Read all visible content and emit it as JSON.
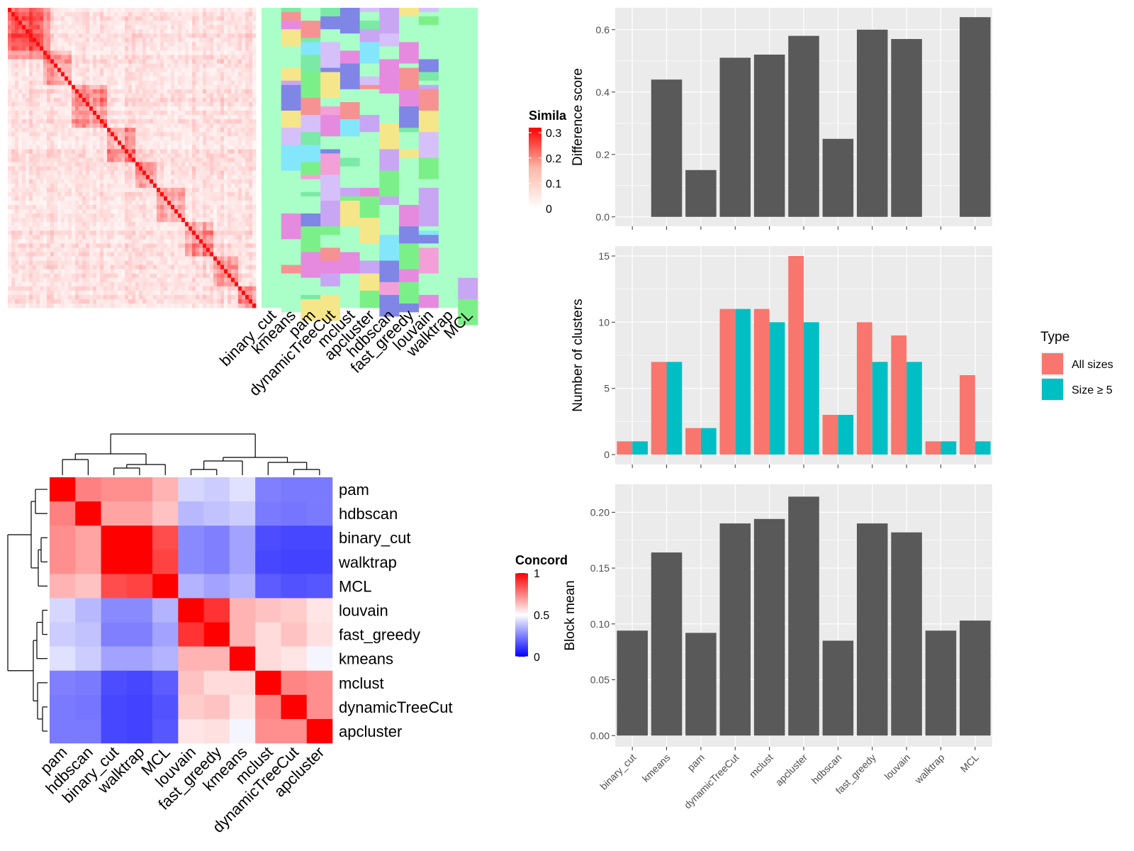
{
  "colors": {
    "panel_bg": "#ebebeb",
    "grid": "#ffffff",
    "bar": "#595959",
    "series_all": "#f8766d",
    "series_size5": "#00bfc4",
    "heat_low": "#0000ff",
    "heat_mid": "#ffffff",
    "heat_high": "#ff0000"
  },
  "chart_data": [
    {
      "id": "similarity_heatmap",
      "type": "heatmap",
      "legend_title": "Simila",
      "legend_ticks": [
        "0.3",
        "0.2",
        "0.1",
        "0"
      ],
      "legend_tick_values": [
        0.3,
        0.2,
        0.1,
        0
      ],
      "column_labels": [
        "binary_cut",
        "kmeans",
        "pam",
        "dynamicTreeCut",
        "mclust",
        "apcluster",
        "hdbscan",
        "fast_greedy",
        "louvain",
        "walktrap",
        "MCL"
      ]
    },
    {
      "id": "concordance_heatmap",
      "type": "heatmap",
      "legend_title": "Concord",
      "legend_ticks": [
        "1",
        "0.5",
        "0"
      ],
      "legend_tick_values": [
        1,
        0.5,
        0
      ],
      "rows": [
        "pam",
        "hdbscan",
        "binary_cut",
        "walktrap",
        "MCL",
        "louvain",
        "fast_greedy",
        "kmeans",
        "mclust",
        "dynamicTreeCut",
        "apcluster"
      ],
      "cols": [
        "pam",
        "hdbscan",
        "binary_cut",
        "walktrap",
        "MCL",
        "louvain",
        "fast_greedy",
        "kmeans",
        "mclust",
        "dynamicTreeCut",
        "apcluster"
      ],
      "values": [
        [
          1.0,
          0.75,
          0.72,
          0.72,
          0.65,
          0.42,
          0.4,
          0.44,
          0.25,
          0.24,
          0.24
        ],
        [
          0.75,
          1.0,
          0.68,
          0.68,
          0.62,
          0.36,
          0.38,
          0.4,
          0.24,
          0.23,
          0.24
        ],
        [
          0.72,
          0.68,
          1.0,
          1.0,
          0.85,
          0.27,
          0.25,
          0.32,
          0.15,
          0.14,
          0.14
        ],
        [
          0.72,
          0.68,
          1.0,
          1.0,
          0.87,
          0.27,
          0.25,
          0.32,
          0.14,
          0.13,
          0.13
        ],
        [
          0.65,
          0.62,
          0.85,
          0.87,
          1.0,
          0.35,
          0.32,
          0.35,
          0.18,
          0.16,
          0.17
        ],
        [
          0.42,
          0.36,
          0.27,
          0.27,
          0.35,
          1.0,
          0.9,
          0.65,
          0.62,
          0.6,
          0.55
        ],
        [
          0.4,
          0.38,
          0.25,
          0.25,
          0.32,
          0.9,
          1.0,
          0.65,
          0.57,
          0.62,
          0.56
        ],
        [
          0.44,
          0.4,
          0.32,
          0.32,
          0.35,
          0.65,
          0.65,
          1.0,
          0.57,
          0.55,
          0.48
        ],
        [
          0.25,
          0.24,
          0.15,
          0.14,
          0.18,
          0.62,
          0.57,
          0.57,
          1.0,
          0.74,
          0.72
        ],
        [
          0.24,
          0.23,
          0.14,
          0.13,
          0.16,
          0.6,
          0.62,
          0.55,
          0.74,
          1.0,
          0.72
        ],
        [
          0.24,
          0.24,
          0.14,
          0.13,
          0.17,
          0.55,
          0.56,
          0.48,
          0.72,
          0.72,
          1.0
        ]
      ]
    },
    {
      "id": "difference_score",
      "type": "bar",
      "categories": [
        "binary_cut",
        "kmeans",
        "pam",
        "dynamicTreeCut",
        "mclust",
        "apcluster",
        "hdbscan",
        "fast_greedy",
        "louvain",
        "walktrap",
        "MCL"
      ],
      "values": [
        0,
        0.44,
        0.15,
        0.51,
        0.52,
        0.58,
        0.25,
        0.6,
        0.57,
        0,
        0.64
      ],
      "ylabel": "Difference score",
      "ylim": [
        -0.03,
        0.67
      ],
      "yticks": [
        0.0,
        0.2,
        0.4,
        0.6
      ],
      "ytick_labels": [
        "0.0",
        "0.2",
        "0.4",
        "0.6"
      ],
      "grid": true
    },
    {
      "id": "number_of_clusters",
      "type": "bar",
      "categories": [
        "binary_cut",
        "kmeans",
        "pam",
        "dynamicTreeCut",
        "mclust",
        "apcluster",
        "hdbscan",
        "fast_greedy",
        "louvain",
        "walktrap",
        "MCL"
      ],
      "series": [
        {
          "name": "All sizes",
          "values": [
            1,
            7,
            2,
            11,
            11,
            15,
            3,
            10,
            9,
            1,
            6
          ]
        },
        {
          "name": "Size ≥ 5",
          "values": [
            1,
            7,
            2,
            11,
            10,
            10,
            3,
            7,
            7,
            1,
            1
          ]
        }
      ],
      "ylabel": "Number of clusters",
      "ylim": [
        -0.75,
        15.75
      ],
      "yticks": [
        0,
        5,
        10,
        15
      ],
      "ytick_labels": [
        "0",
        "5",
        "10",
        "15"
      ],
      "legend_title": "Type",
      "legend_position": "right",
      "grid": true
    },
    {
      "id": "block_mean",
      "type": "bar",
      "categories": [
        "binary_cut",
        "kmeans",
        "pam",
        "dynamicTreeCut",
        "mclust",
        "apcluster",
        "hdbscan",
        "fast_greedy",
        "louvain",
        "walktrap",
        "MCL"
      ],
      "values": [
        0.094,
        0.164,
        0.092,
        0.19,
        0.194,
        0.214,
        0.085,
        0.19,
        0.182,
        0.094,
        0.103
      ],
      "ylabel": "Block mean",
      "ylim": [
        -0.01,
        0.225
      ],
      "yticks": [
        0.0,
        0.05,
        0.1,
        0.15,
        0.2
      ],
      "ytick_labels": [
        "0.00",
        "0.05",
        "0.10",
        "0.15",
        "0.20"
      ],
      "grid": true
    }
  ]
}
